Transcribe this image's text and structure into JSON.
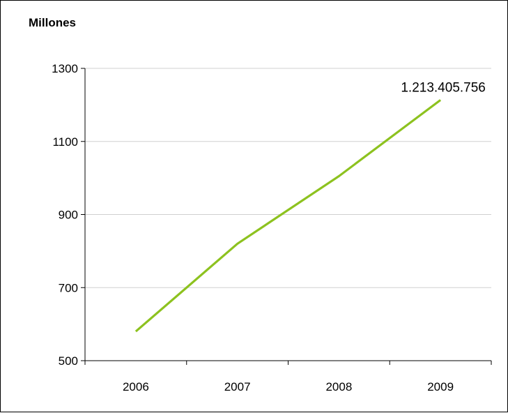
{
  "chart_data": {
    "type": "line",
    "ylabel": "Millones",
    "categories": [
      "2006",
      "2007",
      "2008",
      "2009"
    ],
    "series": [
      {
        "values": [
          580,
          820,
          1005,
          1213.405756
        ],
        "color": "#8dc21f"
      }
    ],
    "yticks": [
      500,
      700,
      900,
      1100,
      1300
    ],
    "ylim": [
      500,
      1300
    ],
    "grid": true,
    "data_labels": [
      {
        "category": "2009",
        "text": "1.213.405.756"
      }
    ]
  }
}
